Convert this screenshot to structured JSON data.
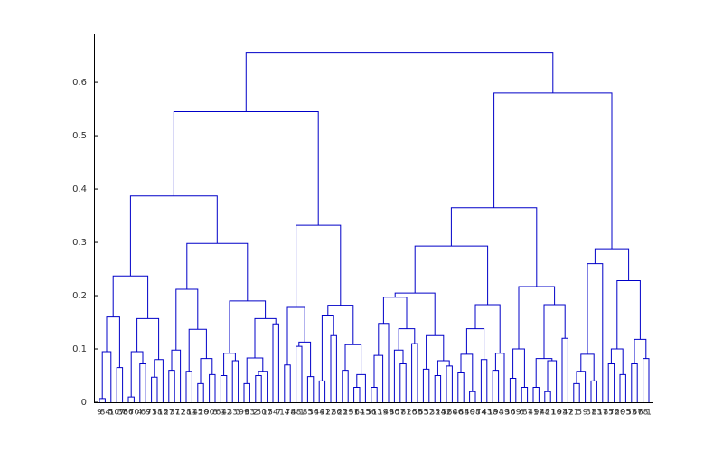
{
  "chart_data": {
    "type": "dendrogram",
    "color": "#0000c8",
    "ylim": [
      0,
      0.69
    ],
    "yticks": [
      0,
      0.1,
      0.2,
      0.3,
      0.4,
      0.5,
      0.6
    ],
    "tree": {
      "height": 0.655,
      "children": [
        {
          "height": 0.545,
          "children": [
            {
              "height": 0.387,
              "children": [
                {
                  "height": 0.237,
                  "children": [
                    {
                      "height": 0.16,
                      "children": [
                        {
                          "height": 0.095,
                          "children": [
                            {
                              "height": 0.007,
                              "children": [
                                "9",
                                "84"
                              ]
                            },
                            "5"
                          ]
                        },
                        {
                          "height": 0.065,
                          "children": [
                            "107",
                            "38"
                          ]
                        }
                      ]
                    },
                    {
                      "height": 0.157,
                      "children": [
                        {
                          "height": 0.095,
                          "children": [
                            {
                              "height": 0.01,
                              "children": [
                                "66",
                                "70"
                              ]
                            },
                            {
                              "height": 0.072,
                              "children": [
                                "4",
                                "69"
                              ]
                            }
                          ]
                        },
                        {
                          "height": 0.08,
                          "children": [
                            {
                              "height": 0.047,
                              "children": [
                                "71",
                                "58"
                              ]
                            },
                            "16"
                          ]
                        }
                      ]
                    }
                  ]
                },
                {
                  "height": 0.298,
                  "children": [
                    {
                      "height": 0.212,
                      "children": [
                        {
                          "height": 0.098,
                          "children": [
                            {
                              "height": 0.06,
                              "children": [
                                "27",
                                "37"
                              ]
                            },
                            "12"
                          ]
                        },
                        {
                          "height": 0.137,
                          "children": [
                            {
                              "height": 0.058,
                              "children": [
                                "28",
                                "11"
                              ]
                            },
                            {
                              "height": 0.082,
                              "children": [
                                {
                                  "height": 0.035,
                                  "children": [
                                    "45",
                                    "20"
                                  ]
                                },
                                {
                                  "height": 0.052,
                                  "children": [
                                    "90",
                                    "8"
                                  ]
                                }
                              ]
                            }
                          ]
                        }
                      ]
                    },
                    {
                      "height": 0.19,
                      "children": [
                        {
                          "height": 0.092,
                          "children": [
                            {
                              "height": 0.05,
                              "children": [
                                "61",
                                "42"
                              ]
                            },
                            {
                              "height": 0.078,
                              "children": [
                                "33",
                                "3"
                              ]
                            }
                          ]
                        },
                        {
                          "height": 0.157,
                          "children": [
                            {
                              "height": 0.083,
                              "children": [
                                {
                                  "height": 0.035,
                                  "children": [
                                    "99",
                                    "63"
                                  ]
                                },
                                {
                                  "height": 0.058,
                                  "children": [
                                    {
                                      "height": 0.05,
                                      "children": [
                                        "2",
                                        "50"
                                      ]
                                    },
                                    "17"
                                  ]
                                }
                              ]
                            },
                            {
                              "height": 0.147,
                              "children": [
                                "54",
                                "7"
                              ]
                            }
                          ]
                        }
                      ]
                    }
                  ]
                }
              ]
            },
            {
              "height": 0.332,
              "children": [
                {
                  "height": 0.178,
                  "children": [
                    {
                      "height": 0.07,
                      "children": [
                        "14",
                        "78"
                      ]
                    },
                    {
                      "height": 0.113,
                      "children": [
                        {
                          "height": 0.105,
                          "children": [
                            "48",
                            "1"
                          ]
                        },
                        {
                          "height": 0.048,
                          "children": [
                            "85",
                            "36"
                          ]
                        }
                      ]
                    }
                  ]
                },
                {
                  "height": 0.182,
                  "children": [
                    {
                      "height": 0.162,
                      "children": [
                        {
                          "height": 0.04,
                          "children": [
                            "44",
                            "91"
                          ]
                        },
                        {
                          "height": 0.125,
                          "children": [
                            "22",
                            "86"
                          ]
                        }
                      ]
                    },
                    {
                      "height": 0.108,
                      "children": [
                        {
                          "height": 0.06,
                          "children": [
                            "23",
                            "29"
                          ]
                        },
                        {
                          "height": 0.052,
                          "children": [
                            {
                              "height": 0.028,
                              "children": [
                                "51",
                                "64"
                              ]
                            },
                            "15"
                          ]
                        }
                      ]
                    }
                  ]
                }
              ]
            }
          ]
        },
        {
          "height": 0.58,
          "children": [
            {
              "height": 0.365,
              "children": [
                {
                  "height": 0.293,
                  "children": [
                    {
                      "height": 0.205,
                      "children": [
                        {
                          "height": 0.197,
                          "children": [
                            {
                              "height": 0.148,
                              "children": [
                                {
                                  "height": 0.088,
                                  "children": [
                                    {
                                      "height": 0.028,
                                      "children": [
                                        "56",
                                        "13"
                                      ]
                                    },
                                    "19"
                                  ]
                                },
                                "49"
                              ]
                            },
                            {
                              "height": 0.138,
                              "children": [
                                {
                                  "height": 0.098,
                                  "children": [
                                    "80",
                                    {
                                      "height": 0.072,
                                      "children": [
                                        "57",
                                        "81"
                                      ]
                                    }
                                  ]
                                },
                                {
                                  "height": 0.11,
                                  "children": [
                                    "26",
                                    "55"
                                  ]
                                }
                              ]
                            }
                          ]
                        },
                        {
                          "height": 0.125,
                          "children": [
                            {
                              "height": 0.062,
                              "children": [
                                "65",
                                "32"
                              ]
                            },
                            {
                              "height": 0.078,
                              "children": [
                                {
                                  "height": 0.05,
                                  "children": [
                                    "35",
                                    "24"
                                  ]
                                },
                                {
                                  "height": 0.068,
                                  "children": [
                                    "52",
                                    "60"
                                  ]
                                }
                              ]
                            }
                          ]
                        }
                      ]
                    },
                    {
                      "height": 0.183,
                      "children": [
                        {
                          "height": 0.138,
                          "children": [
                            {
                              "height": 0.09,
                              "children": [
                                {
                                  "height": 0.055,
                                  "children": [
                                    "46",
                                    "88"
                                  ]
                                },
                                {
                                  "height": 0.02,
                                  "children": [
                                    "40",
                                    "98"
                                  ]
                                }
                              ]
                            },
                            {
                              "height": 0.08,
                              "children": [
                                "74",
                                "43"
                              ]
                            }
                          ]
                        },
                        {
                          "height": 0.092,
                          "children": [
                            {
                              "height": 0.06,
                              "children": [
                                "18",
                                "94"
                              ]
                            },
                            "39"
                          ]
                        }
                      ]
                    }
                  ]
                },
                {
                  "height": 0.217,
                  "children": [
                    {
                      "height": 0.1,
                      "children": [
                        {
                          "height": 0.045,
                          "children": [
                            "30",
                            "59"
                          ]
                        },
                        {
                          "height": 0.028,
                          "children": [
                            "6",
                            "87"
                          ]
                        }
                      ]
                    },
                    {
                      "height": 0.183,
                      "children": [
                        {
                          "height": 0.082,
                          "children": [
                            {
                              "height": 0.028,
                              "children": [
                                "41",
                                "97"
                              ]
                            },
                            {
                              "height": 0.078,
                              "children": [
                                {
                                  "height": 0.02,
                                  "children": [
                                    "48",
                                    "21"
                                  ]
                                },
                                "10"
                              ]
                            }
                          ]
                        },
                        {
                          "height": 0.12,
                          "children": [
                            "93",
                            "47"
                          ]
                        }
                      ]
                    }
                  ]
                }
              ]
            },
            {
              "height": 0.288,
              "children": [
                {
                  "height": 0.26,
                  "children": [
                    {
                      "height": 0.09,
                      "children": [
                        {
                          "height": 0.058,
                          "children": [
                            {
                              "height": 0.035,
                              "children": [
                                "21",
                                "5"
                              ]
                            },
                            "9"
                          ]
                        },
                        {
                          "height": 0.04,
                          "children": [
                            "31",
                            "83"
                          ]
                        }
                      ]
                    },
                    "17"
                  ]
                },
                {
                  "height": 0.228,
                  "children": [
                    {
                      "height": 0.1,
                      "children": [
                        {
                          "height": 0.072,
                          "children": [
                            "85",
                            "76"
                          ]
                        },
                        {
                          "height": 0.052,
                          "children": [
                            "20",
                            "95"
                          ]
                        }
                      ]
                    },
                    {
                      "height": 0.118,
                      "children": [
                        {
                          "height": 0.072,
                          "children": [
                            "53",
                            "67"
                          ]
                        },
                        {
                          "height": 0.082,
                          "children": [
                            "68",
                            "1"
                          ]
                        }
                      ]
                    }
                  ]
                }
              ]
            }
          ]
        }
      ]
    }
  }
}
